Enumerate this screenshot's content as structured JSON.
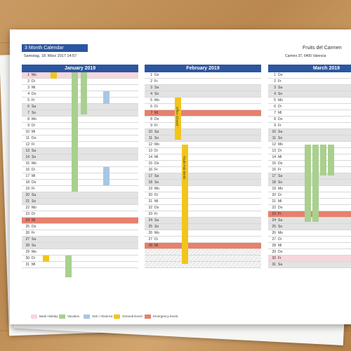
{
  "header": {
    "title": "3 Month Calendar",
    "date_time": "Samstag, 18. März 2017   14:57",
    "company": "Fruits del Carmen",
    "address": "Camino 37, 6400 Valencia"
  },
  "months": [
    {
      "name": "January 2019",
      "days": [
        {
          "n": "1",
          "d": "Mo",
          "type": "bank"
        },
        {
          "n": "2",
          "d": "Di",
          "type": ""
        },
        {
          "n": "3",
          "d": "Mi",
          "type": ""
        },
        {
          "n": "4",
          "d": "Do",
          "type": ""
        },
        {
          "n": "5",
          "d": "Fr",
          "type": ""
        },
        {
          "n": "6",
          "d": "Sa",
          "type": "wknd"
        },
        {
          "n": "7",
          "d": "So",
          "type": "wknd"
        },
        {
          "n": "8",
          "d": "Mo",
          "type": ""
        },
        {
          "n": "9",
          "d": "Di",
          "type": ""
        },
        {
          "n": "10",
          "d": "Mi",
          "type": ""
        },
        {
          "n": "11",
          "d": "Do",
          "type": ""
        },
        {
          "n": "12",
          "d": "Fr",
          "type": ""
        },
        {
          "n": "13",
          "d": "Sa",
          "type": "wknd"
        },
        {
          "n": "14",
          "d": "So",
          "type": "wknd"
        },
        {
          "n": "15",
          "d": "Mo",
          "type": ""
        },
        {
          "n": "16",
          "d": "Di",
          "type": ""
        },
        {
          "n": "17",
          "d": "Mi",
          "type": ""
        },
        {
          "n": "18",
          "d": "Do",
          "type": ""
        },
        {
          "n": "19",
          "d": "Fr",
          "type": ""
        },
        {
          "n": "20",
          "d": "Sa",
          "type": "wknd"
        },
        {
          "n": "21",
          "d": "So",
          "type": "wknd"
        },
        {
          "n": "22",
          "d": "Mo",
          "type": ""
        },
        {
          "n": "23",
          "d": "Di",
          "type": ""
        },
        {
          "n": "24",
          "d": "Mi",
          "type": "emerg"
        },
        {
          "n": "25",
          "d": "Do",
          "type": ""
        },
        {
          "n": "26",
          "d": "Fr",
          "type": ""
        },
        {
          "n": "27",
          "d": "Sa",
          "type": "wknd"
        },
        {
          "n": "28",
          "d": "So",
          "type": "wknd"
        },
        {
          "n": "29",
          "d": "Mo",
          "type": ""
        },
        {
          "n": "30",
          "d": "Di",
          "type": ""
        },
        {
          "n": "31",
          "d": "Mi",
          "type": ""
        }
      ]
    },
    {
      "name": "February 2019",
      "days": [
        {
          "n": "1",
          "d": "Do",
          "type": ""
        },
        {
          "n": "2",
          "d": "Fr",
          "type": ""
        },
        {
          "n": "3",
          "d": "Sa",
          "type": "wknd"
        },
        {
          "n": "4",
          "d": "So",
          "type": "wknd"
        },
        {
          "n": "5",
          "d": "Mo",
          "type": ""
        },
        {
          "n": "6",
          "d": "Di",
          "type": ""
        },
        {
          "n": "7",
          "d": "Mi",
          "type": "emerg"
        },
        {
          "n": "8",
          "d": "Do",
          "type": ""
        },
        {
          "n": "9",
          "d": "Fr",
          "type": ""
        },
        {
          "n": "10",
          "d": "Sa",
          "type": "wknd"
        },
        {
          "n": "11",
          "d": "So",
          "type": "wknd"
        },
        {
          "n": "12",
          "d": "Mo",
          "type": ""
        },
        {
          "n": "13",
          "d": "Di",
          "type": ""
        },
        {
          "n": "14",
          "d": "Mi",
          "type": ""
        },
        {
          "n": "15",
          "d": "Do",
          "type": ""
        },
        {
          "n": "16",
          "d": "Fr",
          "type": ""
        },
        {
          "n": "17",
          "d": "Sa",
          "type": "wknd"
        },
        {
          "n": "18",
          "d": "So",
          "type": "wknd"
        },
        {
          "n": "19",
          "d": "Mo",
          "type": ""
        },
        {
          "n": "20",
          "d": "Di",
          "type": ""
        },
        {
          "n": "21",
          "d": "Mi",
          "type": ""
        },
        {
          "n": "22",
          "d": "Do",
          "type": ""
        },
        {
          "n": "23",
          "d": "Fr",
          "type": ""
        },
        {
          "n": "24",
          "d": "Sa",
          "type": "wknd"
        },
        {
          "n": "25",
          "d": "So",
          "type": "wknd"
        },
        {
          "n": "26",
          "d": "Mo",
          "type": ""
        },
        {
          "n": "27",
          "d": "Di",
          "type": ""
        },
        {
          "n": "28",
          "d": "Mi",
          "type": "emerg"
        },
        {
          "n": "",
          "d": "",
          "type": "empty"
        },
        {
          "n": "",
          "d": "",
          "type": "empty"
        },
        {
          "n": "",
          "d": "",
          "type": "empty"
        }
      ]
    },
    {
      "name": "March 2019",
      "days": [
        {
          "n": "1",
          "d": "Do",
          "type": ""
        },
        {
          "n": "2",
          "d": "Fr",
          "type": ""
        },
        {
          "n": "3",
          "d": "Sa",
          "type": "wknd"
        },
        {
          "n": "4",
          "d": "So",
          "type": "wknd"
        },
        {
          "n": "5",
          "d": "Mo",
          "type": ""
        },
        {
          "n": "6",
          "d": "Di",
          "type": ""
        },
        {
          "n": "7",
          "d": "Mi",
          "type": ""
        },
        {
          "n": "8",
          "d": "Do",
          "type": ""
        },
        {
          "n": "9",
          "d": "Fr",
          "type": ""
        },
        {
          "n": "10",
          "d": "Sa",
          "type": "wknd"
        },
        {
          "n": "11",
          "d": "So",
          "type": "wknd"
        },
        {
          "n": "12",
          "d": "Mo",
          "type": ""
        },
        {
          "n": "13",
          "d": "Di",
          "type": ""
        },
        {
          "n": "14",
          "d": "Mi",
          "type": ""
        },
        {
          "n": "15",
          "d": "Do",
          "type": ""
        },
        {
          "n": "16",
          "d": "Fr",
          "type": ""
        },
        {
          "n": "17",
          "d": "Sa",
          "type": "wknd"
        },
        {
          "n": "18",
          "d": "So",
          "type": "wknd"
        },
        {
          "n": "19",
          "d": "Mo",
          "type": ""
        },
        {
          "n": "20",
          "d": "Di",
          "type": ""
        },
        {
          "n": "21",
          "d": "Mi",
          "type": ""
        },
        {
          "n": "22",
          "d": "Do",
          "type": ""
        },
        {
          "n": "23",
          "d": "Fr",
          "type": "emerg"
        },
        {
          "n": "24",
          "d": "Sa",
          "type": "wknd"
        },
        {
          "n": "25",
          "d": "So",
          "type": "wknd"
        },
        {
          "n": "26",
          "d": "Mo",
          "type": ""
        },
        {
          "n": "27",
          "d": "Di",
          "type": ""
        },
        {
          "n": "28",
          "d": "Mi",
          "type": ""
        },
        {
          "n": "29",
          "d": "Do",
          "type": ""
        },
        {
          "n": "30",
          "d": "Fr",
          "type": "bank"
        },
        {
          "n": "31",
          "d": "Sa",
          "type": "wknd"
        }
      ]
    }
  ],
  "event_labels": {
    "office_closed": "Office Closed",
    "trade_fair": "Trade Fair Berlin"
  },
  "legend": [
    {
      "label": "Bank Holiday",
      "color": "#f6d6dc"
    },
    {
      "label": "Vacation",
      "color": "#a9d08e"
    },
    {
      "label": "Sick / Absence",
      "color": "#a8c6e4"
    },
    {
      "label": "General Event",
      "color": "#f2c51d"
    },
    {
      "label": "Emergency Event",
      "color": "#e7806d"
    }
  ],
  "colors": {
    "accent": "#2b56a0",
    "vacation": "#a9d08e",
    "sick": "#a8c6e4",
    "general": "#f2c51d",
    "emergency": "#e7806d",
    "bank": "#f6d6dc"
  }
}
